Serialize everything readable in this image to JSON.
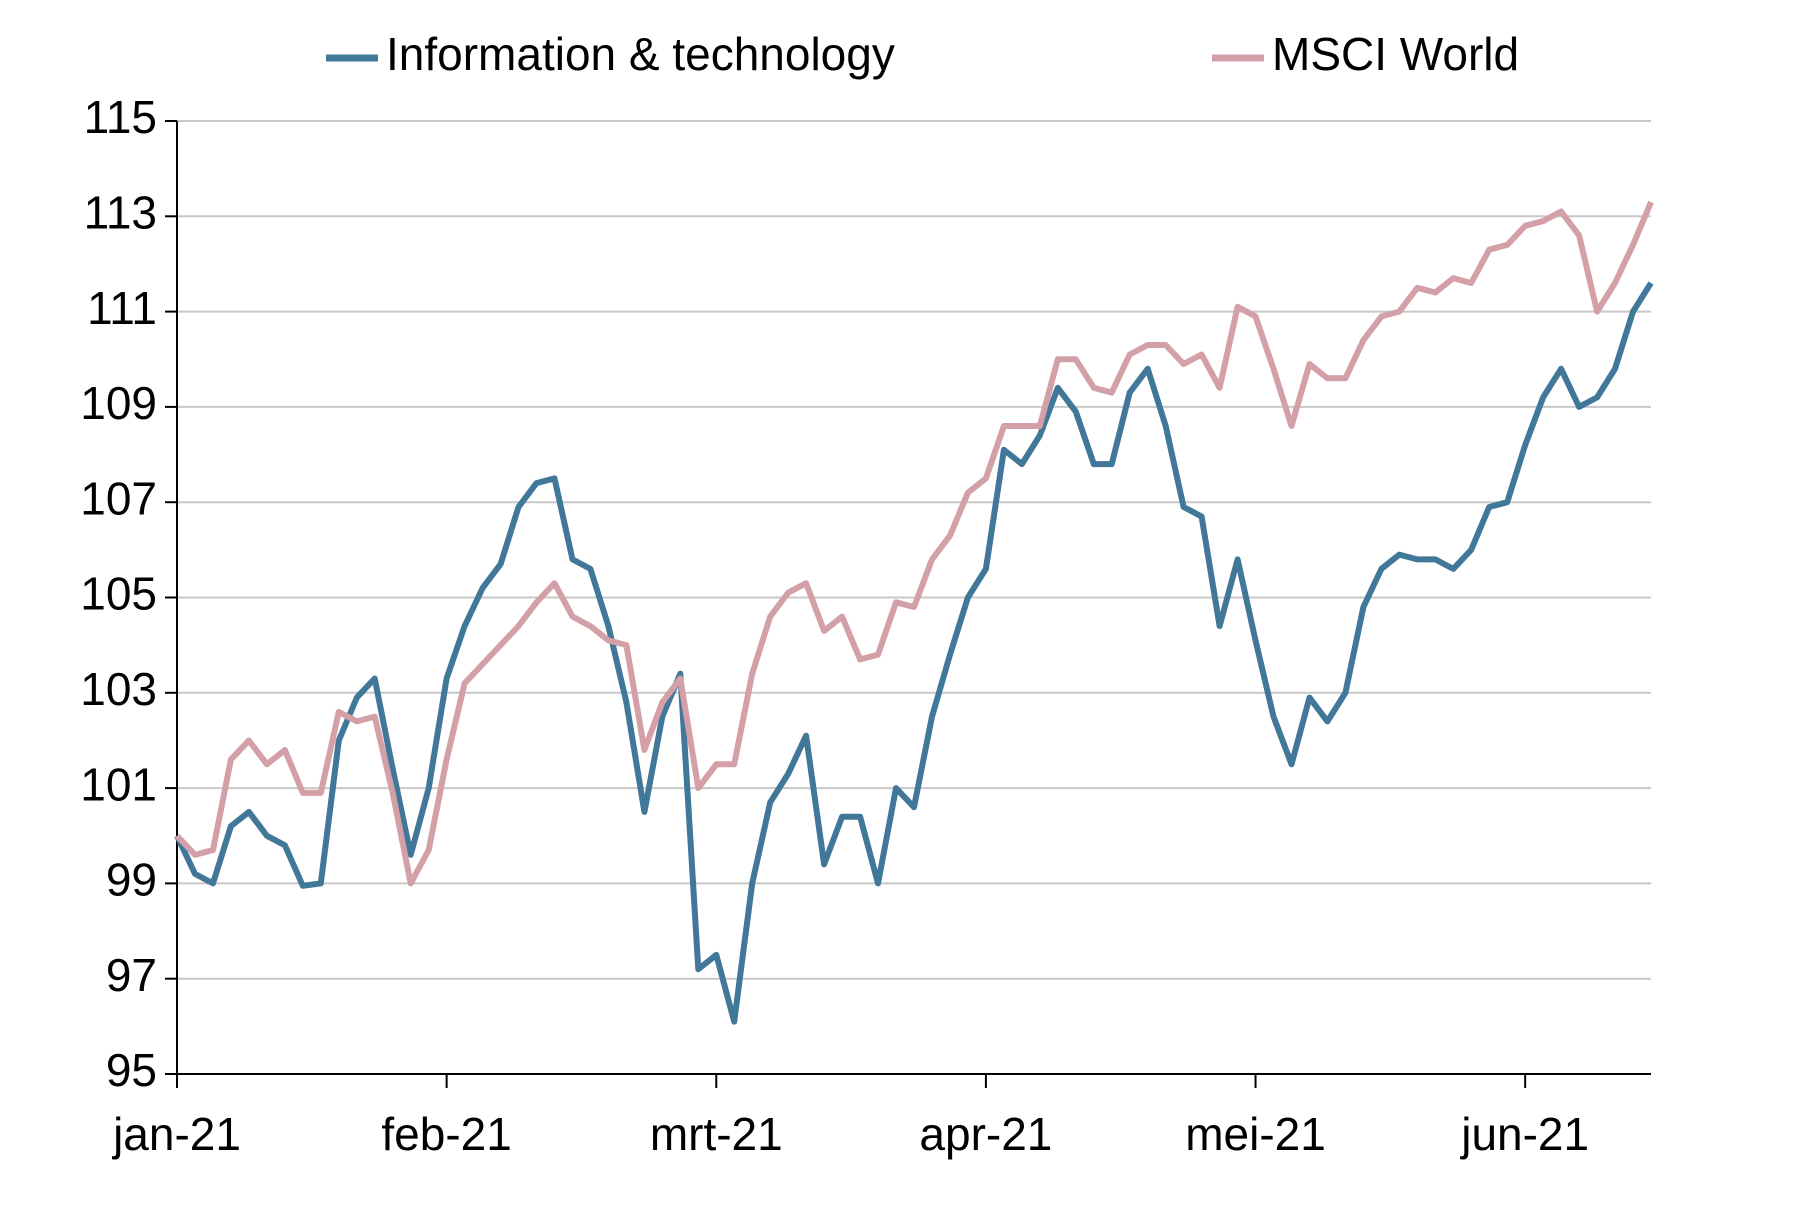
{
  "chart_data": {
    "type": "line",
    "categories": [
      "jan-21",
      null,
      null,
      null,
      null,
      null,
      null,
      null,
      null,
      null,
      null,
      null,
      null,
      null,
      null,
      "feb-21",
      null,
      null,
      null,
      null,
      null,
      null,
      null,
      null,
      null,
      null,
      null,
      null,
      null,
      null,
      "mrt-21",
      null,
      null,
      null,
      null,
      null,
      null,
      null,
      null,
      null,
      null,
      null,
      null,
      null,
      null,
      "apr-21",
      null,
      null,
      null,
      null,
      null,
      null,
      null,
      null,
      null,
      null,
      null,
      null,
      null,
      null,
      "mei-21",
      null,
      null,
      null,
      null,
      null,
      null,
      null,
      null,
      null,
      null,
      null,
      null,
      null,
      null,
      "jun-21",
      null,
      null,
      null,
      null,
      null,
      null,
      null
    ],
    "series": [
      {
        "name": "Information & technology",
        "color": "#41789a",
        "values": [
          100.0,
          99.2,
          99.0,
          100.2,
          100.5,
          100.0,
          99.8,
          98.95,
          99.0,
          102.0,
          102.9,
          103.3,
          101.4,
          99.6,
          101.0,
          103.3,
          104.4,
          105.2,
          105.7,
          106.9,
          107.4,
          107.5,
          105.8,
          105.6,
          104.4,
          102.8,
          100.5,
          102.5,
          103.4,
          97.2,
          97.5,
          96.1,
          99.0,
          100.7,
          101.3,
          102.1,
          99.4,
          100.4,
          100.4,
          99.0,
          101.0,
          100.6,
          102.5,
          103.8,
          105.0,
          105.6,
          108.1,
          107.8,
          108.4,
          109.4,
          108.9,
          107.8,
          107.8,
          109.3,
          109.8,
          108.6,
          106.9,
          106.7,
          104.4,
          105.8,
          104.1,
          102.5,
          101.5,
          102.9,
          102.4,
          103.0,
          104.8,
          105.6,
          105.9,
          105.8,
          105.8,
          105.6,
          106.0,
          106.9,
          107.0,
          108.2,
          109.2,
          109.8,
          109.0,
          109.2,
          109.8,
          111.0,
          111.6
        ]
      },
      {
        "name": "MSCI World",
        "color": "#d4a0a8",
        "values": [
          100.0,
          99.6,
          99.7,
          101.6,
          102.0,
          101.5,
          101.8,
          100.9,
          100.9,
          102.6,
          102.4,
          102.5,
          100.9,
          99.0,
          99.7,
          101.6,
          103.2,
          103.6,
          104.0,
          104.4,
          104.9,
          105.3,
          104.6,
          104.4,
          104.1,
          104.0,
          101.8,
          102.8,
          103.3,
          101.0,
          101.5,
          101.5,
          103.4,
          104.6,
          105.1,
          105.3,
          104.3,
          104.6,
          103.7,
          103.8,
          104.9,
          104.8,
          105.8,
          106.3,
          107.2,
          107.5,
          108.6,
          108.6,
          108.6,
          110.0,
          110.0,
          109.4,
          109.3,
          110.1,
          110.3,
          110.3,
          109.9,
          110.1,
          109.4,
          111.1,
          110.9,
          109.8,
          108.6,
          109.9,
          109.6,
          109.6,
          110.4,
          110.9,
          111.0,
          111.5,
          111.4,
          111.7,
          111.6,
          112.3,
          112.4,
          112.8,
          112.9,
          113.1,
          112.6,
          111.0,
          111.6,
          112.4,
          113.3
        ]
      }
    ],
    "ylim": [
      95,
      115
    ],
    "yticks": [
      95,
      97,
      99,
      101,
      103,
      105,
      107,
      109,
      111,
      113,
      115
    ],
    "grid": true,
    "legend": "top"
  }
}
